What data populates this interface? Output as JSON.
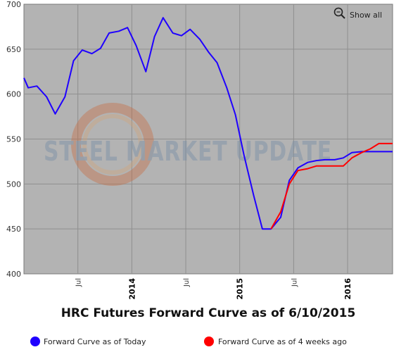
{
  "chart_data": {
    "type": "line",
    "title": "HRC Futures Forward Curve as of 6/10/2015",
    "ylim": [
      400,
      700
    ],
    "y_ticks": [
      400,
      450,
      500,
      550,
      600,
      650,
      700
    ],
    "x_ticks": [
      {
        "label": "Jul",
        "major": false,
        "t": 2013.5
      },
      {
        "label": "2014",
        "major": true,
        "t": 2014.0
      },
      {
        "label": "Jul",
        "major": false,
        "t": 2014.5
      },
      {
        "label": "2015",
        "major": true,
        "t": 2015.0
      },
      {
        "label": "Jul",
        "major": false,
        "t": 2015.5
      },
      {
        "label": "2016",
        "major": true,
        "t": 2016.0
      }
    ],
    "xlim": [
      2013.0,
      2016.417
    ],
    "show_all_label": "Show all",
    "watermark": "STEEL MARKET UPDATE",
    "series": [
      {
        "name": "Forward Curve as of Today",
        "color": "#1f00ff",
        "points": [
          [
            2013.0,
            618
          ],
          [
            2013.04,
            607
          ],
          [
            2013.12,
            609
          ],
          [
            2013.21,
            597
          ],
          [
            2013.29,
            578
          ],
          [
            2013.38,
            597
          ],
          [
            2013.46,
            637
          ],
          [
            2013.54,
            649
          ],
          [
            2013.63,
            645
          ],
          [
            2013.71,
            651
          ],
          [
            2013.79,
            668
          ],
          [
            2013.88,
            670
          ],
          [
            2013.96,
            674
          ],
          [
            2014.04,
            654
          ],
          [
            2014.13,
            625
          ],
          [
            2014.21,
            664
          ],
          [
            2014.29,
            685
          ],
          [
            2014.38,
            668
          ],
          [
            2014.46,
            665
          ],
          [
            2014.54,
            672
          ],
          [
            2014.63,
            661
          ],
          [
            2014.71,
            647
          ],
          [
            2014.79,
            635
          ],
          [
            2014.88,
            607
          ],
          [
            2014.96,
            577
          ],
          [
            2015.04,
            532
          ],
          [
            2015.13,
            487
          ],
          [
            2015.21,
            450
          ],
          [
            2015.29,
            450
          ],
          [
            2015.38,
            463
          ],
          [
            2015.46,
            504
          ],
          [
            2015.54,
            518
          ],
          [
            2015.63,
            524
          ],
          [
            2015.71,
            526
          ],
          [
            2015.79,
            527
          ],
          [
            2015.88,
            527
          ],
          [
            2015.96,
            529
          ],
          [
            2016.04,
            535
          ],
          [
            2016.13,
            536
          ],
          [
            2016.21,
            536
          ],
          [
            2016.29,
            536
          ],
          [
            2016.417,
            536
          ]
        ]
      },
      {
        "name": "Forward Curve as of 4 weeks ago",
        "color": "#ff0000",
        "points": [
          [
            2015.29,
            450
          ],
          [
            2015.38,
            469
          ],
          [
            2015.46,
            500
          ],
          [
            2015.54,
            515
          ],
          [
            2015.63,
            517
          ],
          [
            2015.71,
            520
          ],
          [
            2015.79,
            520
          ],
          [
            2015.88,
            520
          ],
          [
            2015.96,
            520
          ],
          [
            2016.04,
            529
          ],
          [
            2016.13,
            535
          ],
          [
            2016.21,
            539
          ],
          [
            2016.29,
            545
          ],
          [
            2016.417,
            545
          ]
        ]
      }
    ],
    "legend_position": "bottom",
    "grid": true
  }
}
